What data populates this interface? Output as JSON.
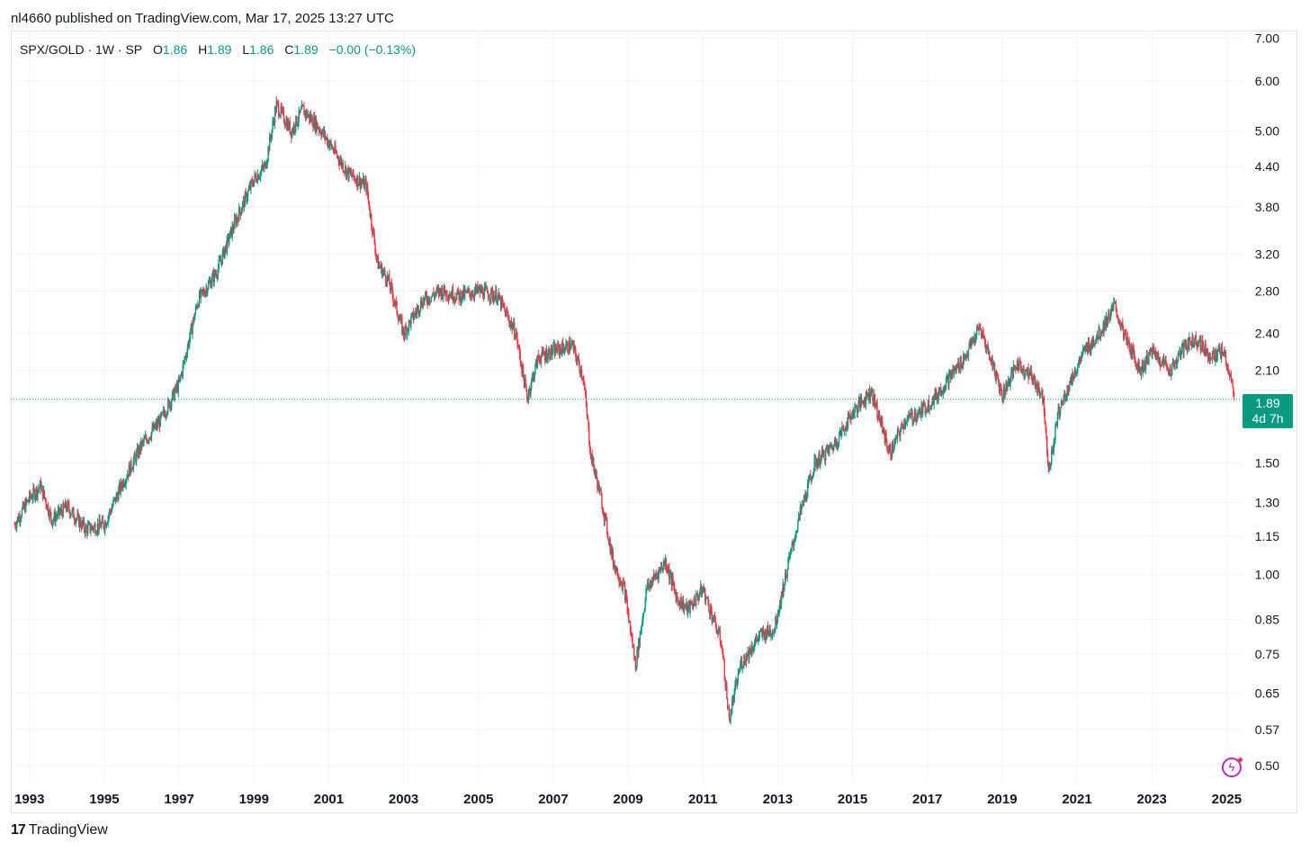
{
  "header": {
    "text": "nl4660 published on TradingView.com, Mar 17, 2025 13:27 UTC"
  },
  "legend": {
    "symbol": "SPX/GOLD · 1W · SP",
    "o_label": "O",
    "o_value": "1.86",
    "h_label": "H",
    "h_value": "1.89",
    "l_label": "L",
    "l_value": "1.86",
    "c_label": "C",
    "c_value": "1.89",
    "change": "−0.00 (−0.13%)"
  },
  "price_badge": {
    "price": "1.89",
    "countdown": "4d 7h"
  },
  "footer": {
    "brand": "TradingView",
    "mark": "17"
  },
  "colors": {
    "up": "#089981",
    "down": "#f23645",
    "grid": "#f0f3fa",
    "last_line": "#089981"
  },
  "icons": {
    "bolt": "lightning-bolt-icon"
  },
  "chart_data": {
    "type": "line",
    "scale": "log",
    "ylim": [
      0.47,
      7.2
    ],
    "xlim": [
      1992.5,
      2025.4
    ],
    "y_ticks": [
      "7.00",
      "6.00",
      "5.00",
      "4.40",
      "3.80",
      "3.20",
      "2.80",
      "2.40",
      "2.10",
      "1.50",
      "1.30",
      "1.15",
      "1.00",
      "0.85",
      "0.75",
      "0.65",
      "0.57",
      "0.50"
    ],
    "x_ticks": [
      "1993",
      "1995",
      "1997",
      "1999",
      "2001",
      "2003",
      "2005",
      "2007",
      "2009",
      "2011",
      "2013",
      "2015",
      "2017",
      "2019",
      "2021",
      "2023",
      "2025"
    ],
    "last_price": 1.89,
    "grid": true,
    "series": [
      {
        "x": [
          1992.6,
          1993.0,
          1993.3,
          1993.6,
          1994.0,
          1994.5,
          1995.0,
          1995.5,
          1996.0,
          1996.5,
          1997.0,
          1997.5,
          1998.0,
          1998.5,
          1999.0,
          1999.3,
          1999.6,
          2000.0,
          2000.3,
          2000.7,
          2001.0,
          2001.5,
          2002.0,
          2002.3,
          2002.6,
          2003.0,
          2003.5,
          2004.0,
          2004.5,
          2005.0,
          2005.5,
          2006.0,
          2006.3,
          2006.6,
          2007.0,
          2007.5,
          2007.8,
          2008.0,
          2008.3,
          2008.6,
          2008.9,
          2009.2,
          2009.5,
          2010.0,
          2010.3,
          2010.6,
          2011.0,
          2011.5,
          2011.7,
          2012.0,
          2012.5,
          2012.9,
          2013.3,
          2013.6,
          2014.0,
          2014.5,
          2015.0,
          2015.5,
          2016.0,
          2016.4,
          2016.8,
          2017.2,
          2017.6,
          2018.0,
          2018.4,
          2018.8,
          2019.0,
          2019.4,
          2019.8,
          2020.1,
          2020.25,
          2020.5,
          2020.8,
          2021.2,
          2021.6,
          2022.0,
          2022.3,
          2022.7,
          2023.0,
          2023.5,
          2023.9,
          2024.2,
          2024.6,
          2024.9,
          2025.1,
          2025.2
        ],
        "y": [
          1.2,
          1.32,
          1.38,
          1.22,
          1.28,
          1.18,
          1.2,
          1.4,
          1.6,
          1.75,
          2.0,
          2.7,
          3.0,
          3.6,
          4.2,
          4.4,
          5.5,
          5.0,
          5.4,
          5.1,
          4.8,
          4.3,
          4.1,
          3.1,
          2.9,
          2.4,
          2.7,
          2.8,
          2.75,
          2.8,
          2.75,
          2.4,
          1.9,
          2.2,
          2.25,
          2.3,
          2.05,
          1.55,
          1.3,
          1.05,
          0.95,
          0.72,
          0.95,
          1.05,
          0.92,
          0.88,
          0.95,
          0.78,
          0.59,
          0.72,
          0.8,
          0.82,
          1.05,
          1.25,
          1.5,
          1.6,
          1.8,
          1.95,
          1.55,
          1.75,
          1.8,
          1.9,
          2.05,
          2.2,
          2.45,
          2.1,
          1.92,
          2.15,
          2.05,
          1.9,
          1.45,
          1.8,
          2.0,
          2.25,
          2.4,
          2.65,
          2.35,
          2.1,
          2.25,
          2.1,
          2.3,
          2.35,
          2.2,
          2.25,
          2.05,
          1.88
        ]
      }
    ]
  }
}
